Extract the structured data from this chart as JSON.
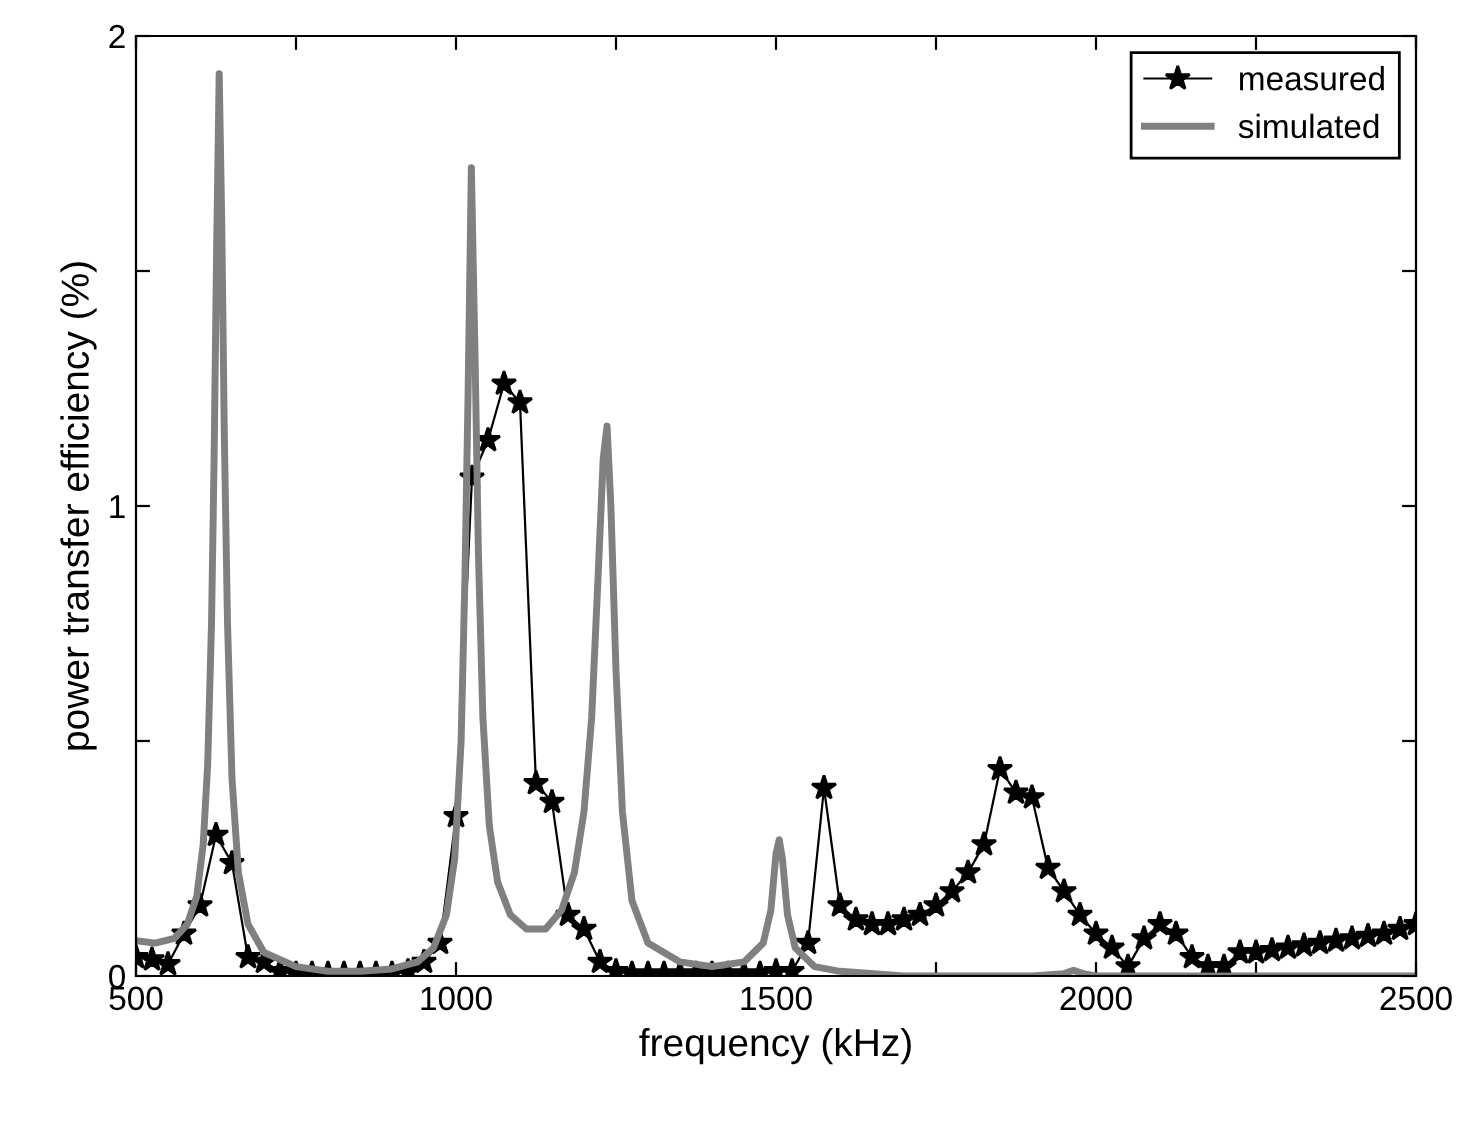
{
  "chart_data": {
    "type": "line",
    "xlabel": "frequency (kHz)",
    "ylabel": "power transfer efficiency (%)",
    "xlim": [
      500,
      2500
    ],
    "xticks": [
      500,
      {
        "value": 750,
        "label": null
      },
      1000,
      {
        "value": 1250,
        "label": null
      },
      1500,
      {
        "value": 1750,
        "label": null
      },
      2000,
      {
        "value": 2250,
        "label": null
      },
      2500
    ],
    "ylim": [
      0,
      2
    ],
    "yticks": [
      0,
      {
        "value": 0.5,
        "label": null
      },
      1,
      {
        "value": 1.5,
        "label": null
      },
      2
    ],
    "grid": false,
    "legend": "top right",
    "series": [
      {
        "name": "measured",
        "color": "#000000",
        "marker": "star",
        "line_style": "solid",
        "x": [
          500,
          525,
          550,
          575,
          600,
          625,
          650,
          675,
          700,
          725,
          750,
          775,
          800,
          825,
          850,
          875,
          900,
          925,
          950,
          975,
          1000,
          1025,
          1050,
          1075,
          1100,
          1125,
          1150,
          1175,
          1200,
          1225,
          1250,
          1275,
          1300,
          1325,
          1350,
          1375,
          1400,
          1425,
          1450,
          1475,
          1500,
          1525,
          1550,
          1575,
          1600,
          1625,
          1650,
          1675,
          1700,
          1725,
          1750,
          1775,
          1800,
          1825,
          1850,
          1875,
          1900,
          1925,
          1950,
          1975,
          2000,
          2025,
          2050,
          2075,
          2100,
          2125,
          2150,
          2175,
          2200,
          2225,
          2250,
          2275,
          2300,
          2325,
          2350,
          2375,
          2400,
          2425,
          2450,
          2475,
          2500
        ],
        "values": [
          0.04,
          0.035,
          0.025,
          0.09,
          0.15,
          0.3,
          0.24,
          0.04,
          0.03,
          0.01,
          0.005,
          0.005,
          0.005,
          0.005,
          0.005,
          0.005,
          0.005,
          0.01,
          0.03,
          0.07,
          0.34,
          1.06,
          1.14,
          1.26,
          1.22,
          0.41,
          0.37,
          0.13,
          0.1,
          0.03,
          0.01,
          0.005,
          0.005,
          0.005,
          0.005,
          0.005,
          0.005,
          0.005,
          0.005,
          0.005,
          0.01,
          0.01,
          0.07,
          0.4,
          0.15,
          0.12,
          0.11,
          0.11,
          0.12,
          0.13,
          0.15,
          0.18,
          0.22,
          0.28,
          0.44,
          0.39,
          0.38,
          0.23,
          0.18,
          0.13,
          0.09,
          0.06,
          0.02,
          0.08,
          0.11,
          0.09,
          0.04,
          0.02,
          0.02,
          0.05,
          0.05,
          0.055,
          0.06,
          0.065,
          0.07,
          0.075,
          0.08,
          0.085,
          0.09,
          0.1,
          0.11
        ]
      },
      {
        "name": "simulated",
        "color": "#808080",
        "marker": "none",
        "line_style": "solid",
        "x": [
          500,
          530,
          560,
          580,
          595,
          605,
          612,
          618,
          622,
          626,
          630,
          634,
          638,
          643,
          650,
          660,
          675,
          700,
          750,
          800,
          850,
          900,
          940,
          965,
          985,
          998,
          1008,
          1014,
          1019,
          1024,
          1030,
          1035,
          1042,
          1052,
          1065,
          1085,
          1110,
          1140,
          1165,
          1185,
          1200,
          1212,
          1222,
          1230,
          1236,
          1242,
          1250,
          1260,
          1275,
          1300,
          1350,
          1400,
          1450,
          1480,
          1492,
          1500,
          1505,
          1510,
          1518,
          1530,
          1560,
          1600,
          1700,
          1900,
          1950,
          1965,
          1980,
          2000,
          2500
        ],
        "values": [
          0.075,
          0.07,
          0.08,
          0.11,
          0.17,
          0.28,
          0.45,
          0.75,
          1.1,
          1.55,
          1.92,
          1.6,
          1.15,
          0.75,
          0.42,
          0.22,
          0.11,
          0.05,
          0.02,
          0.01,
          0.01,
          0.015,
          0.03,
          0.06,
          0.13,
          0.25,
          0.5,
          0.85,
          1.25,
          1.72,
          1.3,
          0.9,
          0.55,
          0.32,
          0.2,
          0.13,
          0.1,
          0.1,
          0.14,
          0.22,
          0.35,
          0.55,
          0.85,
          1.1,
          1.17,
          1.0,
          0.65,
          0.35,
          0.16,
          0.07,
          0.03,
          0.02,
          0.03,
          0.07,
          0.14,
          0.26,
          0.29,
          0.25,
          0.13,
          0.06,
          0.02,
          0.01,
          0,
          0,
          0.005,
          0.012,
          0.005,
          0,
          0
        ]
      }
    ]
  }
}
